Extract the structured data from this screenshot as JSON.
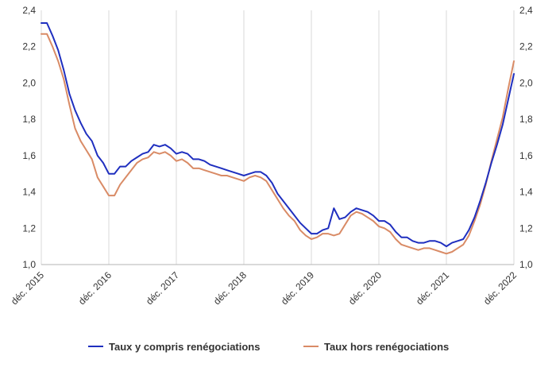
{
  "chart_data": {
    "type": "line",
    "title": "",
    "xlabel": "",
    "ylabel": "",
    "ylim": [
      1.0,
      2.4
    ],
    "y_ticks": [
      "1,0",
      "1,2",
      "1,4",
      "1,6",
      "1,8",
      "2,0",
      "2,2",
      "2,4"
    ],
    "y_axis_sides": [
      "left",
      "right"
    ],
    "x_ticks": [
      "déc. 2015",
      "déc. 2016",
      "déc. 2017",
      "déc. 2018",
      "déc. 2019",
      "déc. 2020",
      "déc. 2021",
      "déc. 2022"
    ],
    "grid": "vertical lines at each x tick",
    "legend_position": "bottom-center",
    "series": [
      {
        "name": "Taux y compris renégociations",
        "color": "#1f2fbf",
        "values": [
          2.33,
          2.33,
          2.26,
          2.18,
          2.07,
          1.94,
          1.85,
          1.78,
          1.72,
          1.68,
          1.6,
          1.56,
          1.5,
          1.5,
          1.54,
          1.54,
          1.57,
          1.59,
          1.61,
          1.62,
          1.66,
          1.65,
          1.66,
          1.64,
          1.61,
          1.62,
          1.61,
          1.58,
          1.58,
          1.57,
          1.55,
          1.54,
          1.53,
          1.52,
          1.51,
          1.5,
          1.49,
          1.5,
          1.51,
          1.51,
          1.49,
          1.45,
          1.39,
          1.35,
          1.31,
          1.27,
          1.23,
          1.2,
          1.17,
          1.17,
          1.19,
          1.2,
          1.31,
          1.25,
          1.26,
          1.29,
          1.31,
          1.3,
          1.29,
          1.27,
          1.24,
          1.24,
          1.22,
          1.18,
          1.15,
          1.15,
          1.13,
          1.12,
          1.12,
          1.13,
          1.13,
          1.12,
          1.1,
          1.12,
          1.13,
          1.14,
          1.19,
          1.26,
          1.35,
          1.45,
          1.56,
          1.66,
          1.77,
          1.91,
          2.05
        ]
      },
      {
        "name": "Taux hors renégociations",
        "color": "#d98b66",
        "values": [
          2.27,
          2.27,
          2.2,
          2.12,
          2.02,
          1.88,
          1.75,
          1.68,
          1.63,
          1.58,
          1.48,
          1.43,
          1.38,
          1.38,
          1.44,
          1.48,
          1.52,
          1.56,
          1.58,
          1.59,
          1.62,
          1.61,
          1.62,
          1.6,
          1.57,
          1.58,
          1.56,
          1.53,
          1.53,
          1.52,
          1.51,
          1.5,
          1.49,
          1.49,
          1.48,
          1.47,
          1.46,
          1.48,
          1.49,
          1.48,
          1.46,
          1.41,
          1.36,
          1.31,
          1.27,
          1.24,
          1.19,
          1.16,
          1.14,
          1.15,
          1.17,
          1.17,
          1.16,
          1.17,
          1.22,
          1.27,
          1.29,
          1.28,
          1.26,
          1.24,
          1.21,
          1.2,
          1.18,
          1.14,
          1.11,
          1.1,
          1.09,
          1.08,
          1.09,
          1.09,
          1.08,
          1.07,
          1.06,
          1.07,
          1.09,
          1.11,
          1.16,
          1.24,
          1.33,
          1.44,
          1.57,
          1.69,
          1.81,
          1.97,
          2.12
        ]
      }
    ]
  }
}
